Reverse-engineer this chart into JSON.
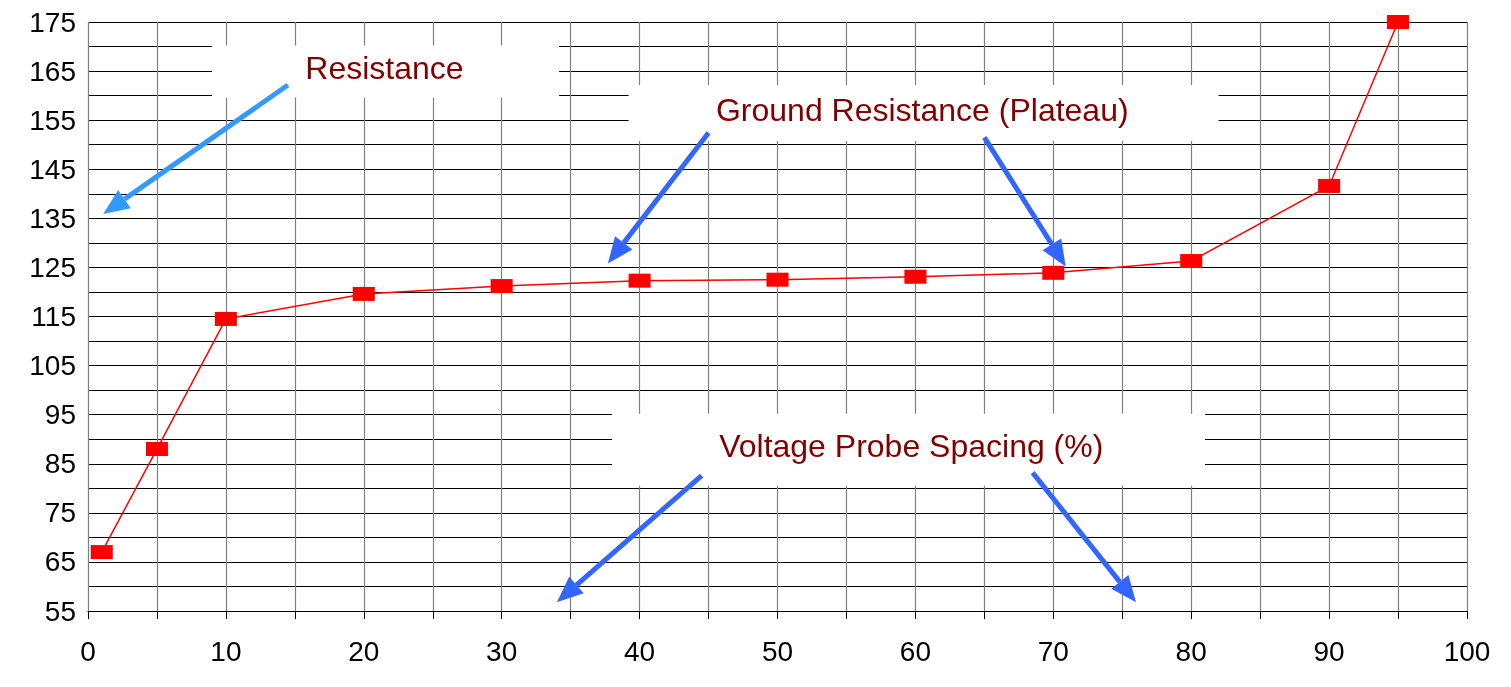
{
  "chart_data": {
    "type": "line",
    "xlabel": "Voltage Probe Spacing (%)",
    "ylabel": "Resistance",
    "annotations": [
      "Ground Resistance (Plateau)"
    ],
    "x": [
      1,
      5,
      10,
      20,
      30,
      40,
      50,
      60,
      70,
      80,
      90,
      95
    ],
    "series": [
      {
        "color": "#ff0000",
        "values": [
          67,
          88,
          114.5,
          119.6,
          121.2,
          122.3,
          122.5,
          123.1,
          123.9,
          126.3,
          141.6,
          175
        ]
      }
    ],
    "xlim": [
      0,
      100
    ],
    "xticks": [
      0,
      {
        "value": 5,
        "label": null
      },
      10,
      {
        "value": 15,
        "label": null
      },
      20,
      {
        "value": 25,
        "label": null
      },
      30,
      {
        "value": 35,
        "label": null
      },
      40,
      {
        "value": 45,
        "label": null
      },
      50,
      {
        "value": 55,
        "label": null
      },
      60,
      {
        "value": 65,
        "label": null
      },
      70,
      {
        "value": 75,
        "label": null
      },
      80,
      {
        "value": 85,
        "label": null
      },
      90,
      {
        "value": 95,
        "label": null
      },
      100
    ],
    "ylim": [
      55,
      175
    ],
    "yticks": [
      55,
      {
        "value": 60,
        "label": null
      },
      65,
      {
        "value": 70,
        "label": null
      },
      75,
      {
        "value": 80,
        "label": null
      },
      85,
      {
        "value": 90,
        "label": null
      },
      95,
      {
        "value": 100,
        "label": null
      },
      105,
      {
        "value": 110,
        "label": null
      },
      115,
      {
        "value": 120,
        "label": null
      },
      125,
      {
        "value": 130,
        "label": null
      },
      135,
      {
        "value": 140,
        "label": null
      },
      145,
      {
        "value": 150,
        "label": null
      },
      155,
      {
        "value": 160,
        "label": null
      },
      165,
      {
        "value": 170,
        "label": null
      },
      175
    ],
    "grid": true,
    "marker": "square",
    "line_style": "solid"
  }
}
